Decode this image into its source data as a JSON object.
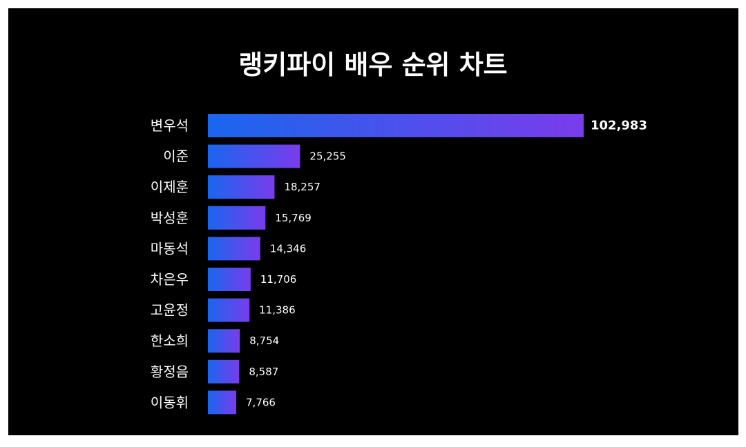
{
  "chart_data": {
    "type": "bar",
    "orientation": "horizontal",
    "title": "랭키파이 배우 순위 차트",
    "categories": [
      "변우석",
      "이준",
      "이제훈",
      "박성훈",
      "마동석",
      "차은우",
      "고윤정",
      "한소희",
      "황정음",
      "이동휘"
    ],
    "values": [
      102983,
      25255,
      18257,
      15769,
      14346,
      11706,
      11386,
      8754,
      8587,
      7766
    ],
    "value_labels": [
      "102,983",
      "25,255",
      "18,257",
      "15,769",
      "14,346",
      "11,706",
      "11,386",
      "8,754",
      "8,587",
      "7,766"
    ],
    "xlabel": "",
    "ylabel": "",
    "xlim": [
      0,
      102983
    ],
    "grid": false,
    "legend": "none",
    "gradient": [
      "#1a66ee",
      "#7a3cec"
    ]
  },
  "colors": {
    "background": "#000000",
    "text": "#ffffff"
  }
}
